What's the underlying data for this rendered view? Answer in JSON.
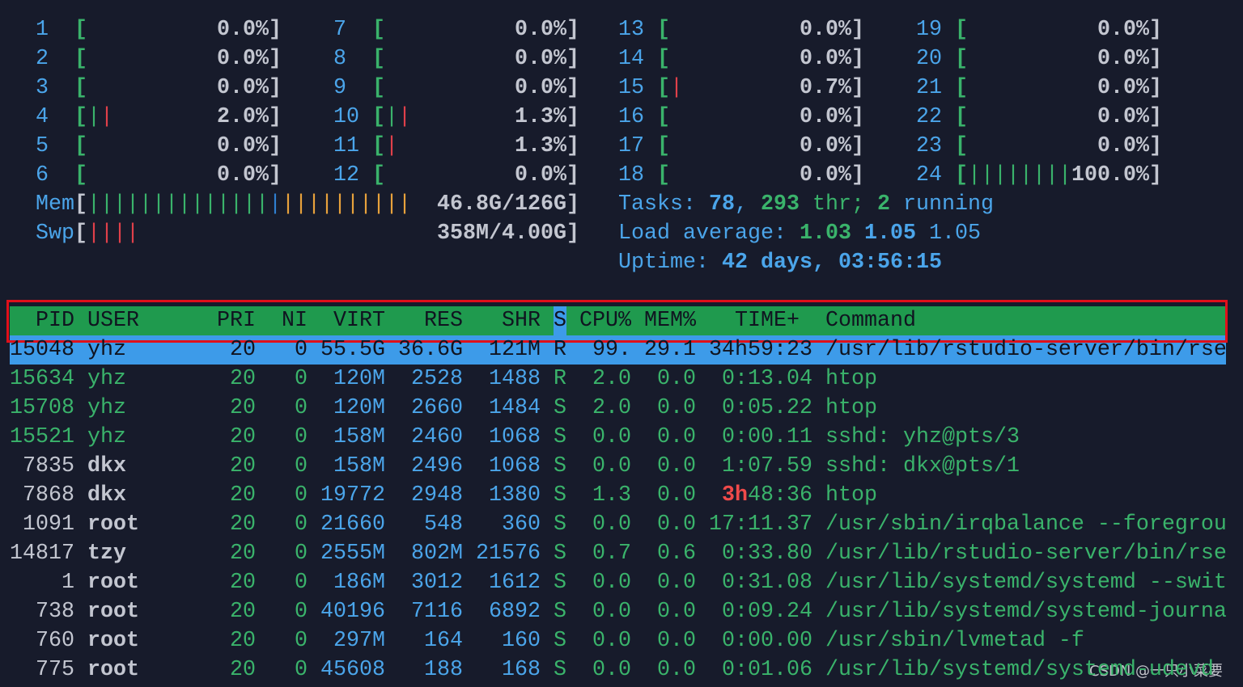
{
  "meters": {
    "brackets": [
      "[",
      "]"
    ],
    "cpus": [
      {
        "label": "1",
        "bar": [],
        "percent": "0.0%"
      },
      {
        "label": "2",
        "bar": [],
        "percent": "0.0%"
      },
      {
        "label": "3",
        "bar": [],
        "percent": "0.0%"
      },
      {
        "label": "4",
        "bar": [
          {
            "chars": "|",
            "color": "#3ab36b"
          },
          {
            "chars": "|",
            "color": "#e0404a"
          }
        ],
        "percent": "2.0%"
      },
      {
        "label": "5",
        "bar": [],
        "percent": "0.0%"
      },
      {
        "label": "6",
        "bar": [],
        "percent": "0.0%"
      },
      {
        "label": "7",
        "bar": [],
        "percent": "0.0%"
      },
      {
        "label": "8",
        "bar": [],
        "percent": "0.0%"
      },
      {
        "label": "9",
        "bar": [],
        "percent": "0.0%"
      },
      {
        "label": "10",
        "bar": [
          {
            "chars": "|",
            "color": "#3ab36b"
          },
          {
            "chars": "|",
            "color": "#e0404a"
          }
        ],
        "percent": "1.3%"
      },
      {
        "label": "11",
        "bar": [
          {
            "chars": "|",
            "color": "#e0404a"
          }
        ],
        "percent": "1.3%"
      },
      {
        "label": "12",
        "bar": [],
        "percent": "0.0%"
      },
      {
        "label": "13",
        "bar": [],
        "percent": "0.0%"
      },
      {
        "label": "14",
        "bar": [],
        "percent": "0.0%"
      },
      {
        "label": "15",
        "bar": [
          {
            "chars": "|",
            "color": "#e0404a"
          }
        ],
        "percent": "0.7%"
      },
      {
        "label": "16",
        "bar": [],
        "percent": "0.0%"
      },
      {
        "label": "17",
        "bar": [],
        "percent": "0.0%"
      },
      {
        "label": "18",
        "bar": [],
        "percent": "0.0%"
      },
      {
        "label": "19",
        "bar": [],
        "percent": "0.0%"
      },
      {
        "label": "20",
        "bar": [],
        "percent": "0.0%"
      },
      {
        "label": "21",
        "bar": [],
        "percent": "0.0%"
      },
      {
        "label": "22",
        "bar": [],
        "percent": "0.0%"
      },
      {
        "label": "23",
        "bar": [],
        "percent": "0.0%"
      },
      {
        "label": "24",
        "bar": [
          {
            "chars": "||||||||",
            "color": "#3ab36b"
          }
        ],
        "percent": "100.0%"
      }
    ],
    "mem": {
      "label": "Mem",
      "bar": [
        {
          "chars": "||||||||||||||",
          "color": "#3ab36b"
        },
        {
          "chars": "|",
          "color": "#2f7fd0"
        },
        {
          "chars": "||||||||||",
          "color": "#e8a23c"
        }
      ],
      "value": "46.8G/126G"
    },
    "swp": {
      "label": "Swp",
      "bar": [
        {
          "chars": "||||",
          "color": "#e0404a"
        }
      ],
      "value": "358M/4.00G"
    }
  },
  "summary": [
    [
      {
        "text": "Tasks: ",
        "color": "#4ba5ea",
        "bold": false
      },
      {
        "text": "78",
        "color": "#4ba5ea",
        "bold": true
      },
      {
        "text": ", ",
        "color": "#4ba5ea",
        "bold": false
      },
      {
        "text": "293",
        "color": "#3ab36b",
        "bold": true
      },
      {
        "text": " thr; ",
        "color": "#3ab36b",
        "bold": false
      },
      {
        "text": "2",
        "color": "#3ab36b",
        "bold": true
      },
      {
        "text": " running",
        "color": "#4ba5ea",
        "bold": false
      }
    ],
    [
      {
        "text": "Load average: ",
        "color": "#4ba5ea",
        "bold": false
      },
      {
        "text": "1.03 ",
        "color": "#3ab36b",
        "bold": true
      },
      {
        "text": "1.05 ",
        "color": "#4ba5ea",
        "bold": true
      },
      {
        "text": "1.05",
        "color": "#4ba5ea",
        "bold": false
      }
    ],
    [
      {
        "text": "Uptime: ",
        "color": "#4ba5ea",
        "bold": false
      },
      {
        "text": "42 days, 03:56:15",
        "color": "#4ba5ea",
        "bold": true
      }
    ]
  ],
  "table": {
    "header": [
      "PID",
      "USER",
      "PRI",
      "NI",
      "VIRT",
      "RES",
      "SHR",
      "S",
      "CPU%",
      "MEM%",
      "TIME+",
      "Command"
    ],
    "selected_row": 0,
    "rows": [
      {
        "color": "#3ab36b",
        "cells": [
          "15048",
          "yhz",
          "20",
          "0",
          "55.5G",
          "36.6G",
          "121M",
          "R",
          "99.",
          "29.1",
          "34h59:23",
          "/usr/lib/rstudio-server/bin/rse"
        ]
      },
      {
        "color": "#3ab36b",
        "cells": [
          "15634",
          "yhz",
          "20",
          "0",
          "120M",
          "2528",
          "1488",
          "R",
          "2.0",
          "0.0",
          "0:13.04",
          "htop"
        ]
      },
      {
        "color": "#3ab36b",
        "cells": [
          "15708",
          "yhz",
          "20",
          "0",
          "120M",
          "2660",
          "1484",
          "S",
          "2.0",
          "0.0",
          "0:05.22",
          "htop"
        ]
      },
      {
        "color": "#3ab36b",
        "cells": [
          "15521",
          "yhz",
          "20",
          "0",
          "158M",
          "2460",
          "1068",
          "S",
          "0.0",
          "0.0",
          "0:00.11",
          "sshd: yhz@pts/3"
        ]
      },
      {
        "color": "#c3c6d0",
        "cells": [
          "7835",
          "dkx",
          "20",
          "0",
          "158M",
          "2496",
          "1068",
          "S",
          "0.0",
          "0.0",
          "1:07.59",
          "sshd: dkx@pts/1"
        ]
      },
      {
        "color": "#c3c6d0",
        "cells": [
          "7868",
          "dkx",
          "20",
          "0",
          "19772",
          "2948",
          "1380",
          "S",
          "1.3",
          "0.0",
          [
            {
              "text": "3h",
              "color": "#f04a4a"
            },
            {
              "text": "48:36",
              "color": "#3ab36b"
            }
          ],
          "htop"
        ]
      },
      {
        "color": "#c3c6d0",
        "cells": [
          "1091",
          "root",
          "20",
          "0",
          "21660",
          "548",
          "360",
          "S",
          "0.0",
          "0.0",
          "17:11.37",
          "/usr/sbin/irqbalance --foregrou"
        ]
      },
      {
        "color": "#c3c6d0",
        "cells": [
          "14817",
          "tzy",
          "20",
          "0",
          "2555M",
          "802M",
          "21576",
          "S",
          "0.7",
          "0.6",
          "0:33.80",
          "/usr/lib/rstudio-server/bin/rse"
        ]
      },
      {
        "color": "#c3c6d0",
        "cells": [
          "1",
          "root",
          "20",
          "0",
          "186M",
          "3012",
          "1612",
          "S",
          "0.0",
          "0.0",
          "0:31.08",
          "/usr/lib/systemd/systemd --swit"
        ]
      },
      {
        "color": "#c3c6d0",
        "cells": [
          "738",
          "root",
          "20",
          "0",
          "40196",
          "7116",
          "6892",
          "S",
          "0.0",
          "0.0",
          "0:09.24",
          "/usr/lib/systemd/systemd-journa"
        ]
      },
      {
        "color": "#c3c6d0",
        "cells": [
          "760",
          "root",
          "20",
          "0",
          "297M",
          "164",
          "160",
          "S",
          "0.0",
          "0.0",
          "0:00.00",
          "/usr/sbin/lvmetad -f"
        ]
      },
      {
        "color": "#c3c6d0",
        "cells": [
          "775",
          "root",
          "20",
          "0",
          "45608",
          "188",
          "168",
          "S",
          "0.0",
          "0.0",
          "0:01.06",
          "/usr/lib/systemd/systemd-udevd"
        ]
      }
    ]
  },
  "watermark": "CSDN @一只小菜要"
}
